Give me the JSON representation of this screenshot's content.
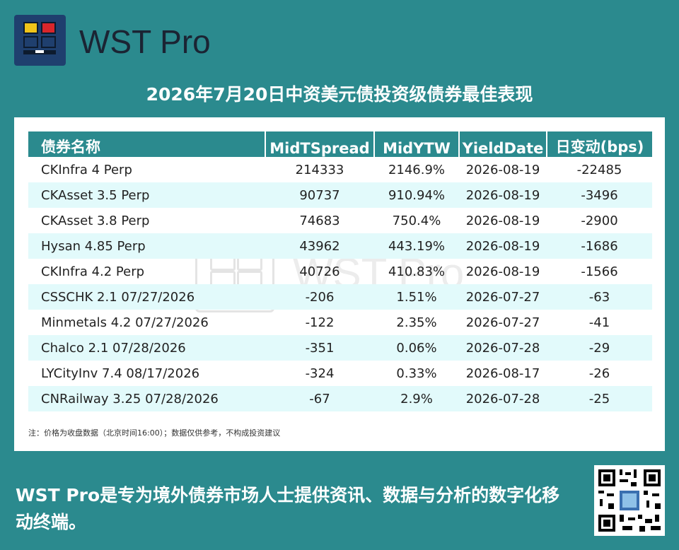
{
  "brand": {
    "logo_text": "WST Pro"
  },
  "headline": "2026年7月20日中资美元债投资级债券最佳表现",
  "table": {
    "columns": [
      "债券名称",
      "MidTSpread",
      "MidYTW",
      "YieldDate",
      "日变动(bps)"
    ],
    "rows": [
      [
        "CKInfra 4 Perp",
        "214333",
        "2146.9%",
        "2026-08-19",
        "-22485"
      ],
      [
        "CKAsset 3.5 Perp",
        "90737",
        "910.94%",
        "2026-08-19",
        "-3496"
      ],
      [
        "CKAsset 3.8 Perp",
        "74683",
        "750.4%",
        "2026-08-19",
        "-2900"
      ],
      [
        "Hysan 4.85 Perp",
        "43962",
        "443.19%",
        "2026-08-19",
        "-1686"
      ],
      [
        "CKInfra 4.2 Perp",
        "40726",
        "410.83%",
        "2026-08-19",
        "-1566"
      ],
      [
        "CSSCHK 2.1 07/27/2026",
        "-206",
        "1.51%",
        "2026-07-27",
        "-63"
      ],
      [
        "Minmetals 4.2 07/27/2026",
        "-122",
        "2.35%",
        "2026-07-27",
        "-41"
      ],
      [
        "Chalco 2.1 07/28/2026",
        "-351",
        "0.06%",
        "2026-07-28",
        "-29"
      ],
      [
        "LYCityInv 7.4 08/17/2026",
        "-324",
        "0.33%",
        "2026-08-17",
        "-26"
      ],
      [
        "CNRailway 3.25 07/28/2026",
        "-67",
        "2.9%",
        "2026-07-28",
        "-25"
      ]
    ]
  },
  "note": "注：价格为收盘数据（北京时间16:00）；数据仅供参考，不构成投资建议",
  "watermark": "WST Pro",
  "tagline": "WST Pro是专为境外债券市场人士提供资讯、数据与分析的数字化移动终端。",
  "colors": {
    "background": "#2b8a8e",
    "header": "#2b8a8e",
    "row_alt": "#e2fafb",
    "logo_bg": "#1f3f6e"
  }
}
